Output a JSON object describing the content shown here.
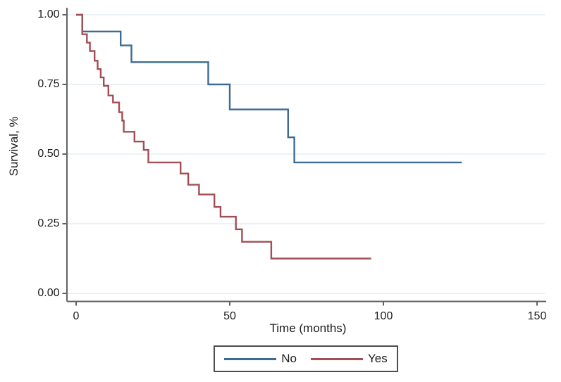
{
  "figure": {
    "background_color": "#ffffff",
    "text_color": "#1c1c1c",
    "axis_color": "#636363",
    "grid_color": "#e4edf3"
  },
  "axes": {
    "y_title": "Survival, %",
    "x_title": "Time (months)",
    "y_tick_labels": [
      "0.00",
      "0.25",
      "0.50",
      "0.75",
      "1.00"
    ],
    "x_tick_labels": [
      "0",
      "50",
      "100",
      "150"
    ]
  },
  "legend": {
    "items": [
      {
        "label": "No",
        "color": "#3d6b93"
      },
      {
        "label": "Yes",
        "color": "#a34e54"
      }
    ]
  },
  "chart_data": {
    "type": "line",
    "subtype": "kaplan-meier-step",
    "title": "",
    "xlabel": "Time (months)",
    "ylabel": "Survival, %",
    "xlim": [
      0,
      152
    ],
    "ylim": [
      0.0,
      1.0
    ],
    "x_ticks": [
      0,
      50,
      100,
      150
    ],
    "y_ticks": [
      0.0,
      0.25,
      0.5,
      0.75,
      1.0
    ],
    "grid": "horizontal",
    "legend_position": "bottom-center",
    "series": [
      {
        "name": "No",
        "color": "#3d6b93",
        "points": [
          [
            0,
            1.0
          ],
          [
            2,
            0.94
          ],
          [
            14.5,
            0.89
          ],
          [
            18,
            0.83
          ],
          [
            43,
            0.75
          ],
          [
            50,
            0.66
          ],
          [
            69,
            0.56
          ],
          [
            71,
            0.47
          ],
          [
            125.5,
            0.47
          ]
        ]
      },
      {
        "name": "Yes",
        "color": "#a34e54",
        "points": [
          [
            0,
            1.0
          ],
          [
            2,
            0.93
          ],
          [
            3.5,
            0.9
          ],
          [
            4.5,
            0.87
          ],
          [
            6,
            0.835
          ],
          [
            7,
            0.805
          ],
          [
            8,
            0.775
          ],
          [
            9,
            0.745
          ],
          [
            10.5,
            0.71
          ],
          [
            12,
            0.685
          ],
          [
            14,
            0.65
          ],
          [
            15,
            0.62
          ],
          [
            15.5,
            0.58
          ],
          [
            19,
            0.545
          ],
          [
            22,
            0.515
          ],
          [
            23.5,
            0.47
          ],
          [
            34,
            0.43
          ],
          [
            36.5,
            0.39
          ],
          [
            40,
            0.355
          ],
          [
            45,
            0.31
          ],
          [
            47,
            0.275
          ],
          [
            52,
            0.23
          ],
          [
            54,
            0.185
          ],
          [
            63.5,
            0.125
          ],
          [
            96,
            0.125
          ]
        ]
      }
    ]
  }
}
